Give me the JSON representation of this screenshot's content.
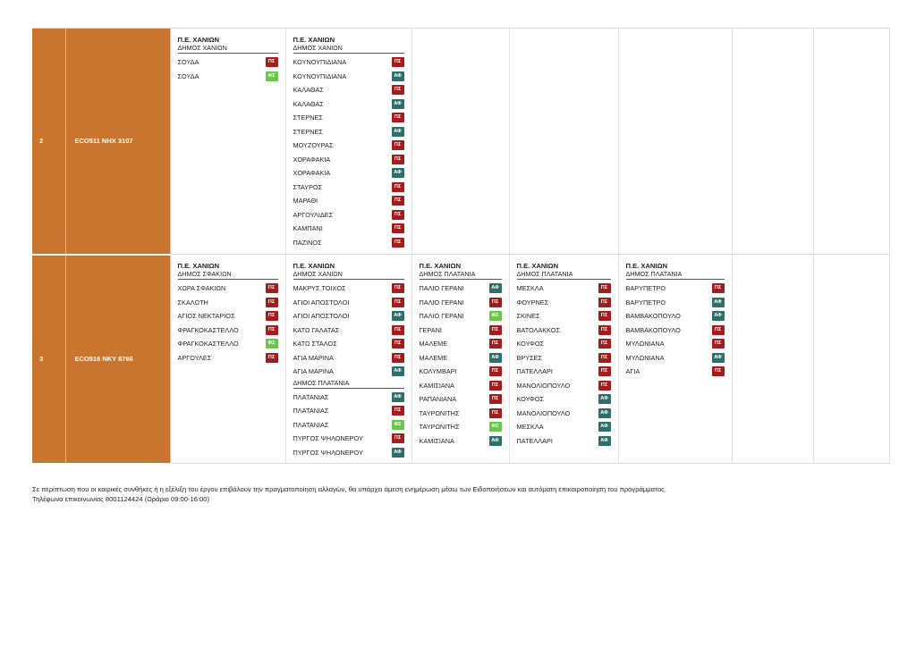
{
  "badge_colors": {
    "ΠΣ": "#a61c1c",
    "ΑΦ": "#2f6f6a",
    "ΦΣ": "#6cc64c"
  },
  "rows": [
    {
      "no": "2",
      "vehicle": "ECO511  NHX 3107",
      "columns": [
        {
          "pe": "Π.Ε. ΧΑΝΙΩΝ",
          "groups": [
            {
              "dimos": "ΔΗΜΟΣ ΧΑΝΙΩΝ",
              "stops": [
                {
                  "name": "ΣΟΥΔΑ",
                  "badge": "ΠΣ"
                },
                {
                  "name": "ΣΟΥΔΑ",
                  "badge": "ΦΣ"
                }
              ]
            }
          ]
        },
        {
          "pe": "Π.Ε. ΧΑΝΙΩΝ",
          "groups": [
            {
              "dimos": "ΔΗΜΟΣ ΧΑΝΙΩΝ",
              "stops": [
                {
                  "name": "ΚΟΥΝΟΥΠΙΔΙΑΝΑ",
                  "badge": "ΠΣ"
                },
                {
                  "name": "ΚΟΥΝΟΥΠΙΔΙΑΝΑ",
                  "badge": "ΑΦ"
                },
                {
                  "name": "ΚΑΛΑΘΑΣ",
                  "badge": "ΠΣ"
                },
                {
                  "name": "ΚΑΛΑΘΑΣ",
                  "badge": "ΑΦ"
                },
                {
                  "name": "ΣΤΕΡΝΕΣ",
                  "badge": "ΠΣ"
                },
                {
                  "name": "ΣΤΕΡΝΕΣ",
                  "badge": "ΑΦ"
                },
                {
                  "name": "ΜΟΥΖΟΥΡΑΣ",
                  "badge": "ΠΣ"
                },
                {
                  "name": "ΧΟΡΑΦΑΚΙΑ",
                  "badge": "ΠΣ"
                },
                {
                  "name": "ΧΟΡΑΦΑΚΙΑ",
                  "badge": "ΑΦ"
                },
                {
                  "name": "ΣΤΑΥΡΟΣ",
                  "badge": "ΠΣ"
                },
                {
                  "name": "ΜΑΡΑΘΙ",
                  "badge": "ΠΣ"
                },
                {
                  "name": "ΑΡΓΟΥΛΙΔΕΣ",
                  "badge": "ΠΣ"
                },
                {
                  "name": "ΚΑΜΠΑΝΙ",
                  "badge": "ΠΣ"
                },
                {
                  "name": "ΠΑΖΙΝΟΣ",
                  "badge": "ΠΣ"
                }
              ]
            }
          ]
        },
        null,
        null,
        null,
        null,
        null
      ]
    },
    {
      "no": "3",
      "vehicle": "ECO516  NKY 8766",
      "columns": [
        {
          "pe": "Π.Ε. ΧΑΝΙΩΝ",
          "groups": [
            {
              "dimos": "ΔΗΜΟΣ ΣΦΑΚΙΩΝ",
              "stops": [
                {
                  "name": "ΧΩΡΑ ΣΦΑΚΙΩΝ",
                  "badge": "ΠΣ"
                },
                {
                  "name": "ΣΚΑΛΩΤΗ",
                  "badge": "ΠΣ"
                },
                {
                  "name": "ΑΓΙΟΣ ΝΕΚΤΑΡΙΟΣ",
                  "badge": "ΠΣ"
                },
                {
                  "name": "ΦΡΑΓΚΟΚΑΣΤΕΛΛΟ",
                  "badge": "ΠΣ"
                },
                {
                  "name": "ΦΡΑΓΚΟΚΑΣΤΕΛΛΟ",
                  "badge": "ΦΣ"
                },
                {
                  "name": "ΑΡΓΟΥΛΕΣ",
                  "badge": "ΠΣ"
                }
              ]
            }
          ]
        },
        {
          "pe": "Π.Ε. ΧΑΝΙΩΝ",
          "groups": [
            {
              "dimos": "ΔΗΜΟΣ ΧΑΝΙΩΝ",
              "stops": [
                {
                  "name": "ΜΑΚΡΥΣ ΤΟΙΧΟΣ",
                  "badge": "ΠΣ"
                },
                {
                  "name": "ΑΓΙΟΙ ΑΠΟΣΤΟΛΟΙ",
                  "badge": "ΠΣ"
                },
                {
                  "name": "ΑΓΙΟΙ ΑΠΟΣΤΟΛΟΙ",
                  "badge": "ΑΦ"
                },
                {
                  "name": "ΚΑΤΩ ΓΑΛΑΤΑΣ",
                  "badge": "ΠΣ"
                },
                {
                  "name": "ΚΑΤΩ ΣΤΑΛΟΣ",
                  "badge": "ΠΣ"
                },
                {
                  "name": "ΑΓΙΑ ΜΑΡΙΝΑ",
                  "badge": "ΠΣ"
                },
                {
                  "name": "ΑΓΙΑ ΜΑΡΙΝΑ",
                  "badge": "ΑΦ"
                }
              ]
            },
            {
              "dimos": "ΔΗΜΟΣ ΠΛΑΤΑΝΙΑ",
              "stops": [
                {
                  "name": "ΠΛΑΤΑΝΙΑΣ",
                  "badge": "ΑΦ"
                },
                {
                  "name": "ΠΛΑΤΑΝΙΑΣ",
                  "badge": "ΠΣ"
                },
                {
                  "name": "ΠΛΑΤΑΝΙΑΣ",
                  "badge": "ΦΣ"
                },
                {
                  "name": "ΠΥΡΓΟΣ ΨΗΛΟΝΕΡΟΥ",
                  "badge": "ΠΣ"
                },
                {
                  "name": "ΠΥΡΓΟΣ ΨΗΛΟΝΕΡΟΥ",
                  "badge": "ΑΦ"
                }
              ]
            }
          ]
        },
        {
          "pe": "Π.Ε. ΧΑΝΙΩΝ",
          "groups": [
            {
              "dimos": "ΔΗΜΟΣ ΠΛΑΤΑΝΙΑ",
              "stops": [
                {
                  "name": "ΠΑΛΙΟ ΓΕΡΑΝΙ",
                  "badge": "ΑΦ"
                },
                {
                  "name": "ΠΑΛΙΟ ΓΕΡΑΝΙ",
                  "badge": "ΠΣ"
                },
                {
                  "name": "ΠΑΛΙΟ ΓΕΡΑΝΙ",
                  "badge": "ΦΣ"
                },
                {
                  "name": "ΓΕΡΑΝΙ",
                  "badge": "ΠΣ"
                },
                {
                  "name": "ΜΑΛΕΜΕ",
                  "badge": "ΠΣ"
                },
                {
                  "name": "ΜΑΛΕΜΕ",
                  "badge": "ΑΦ"
                },
                {
                  "name": "ΚΟΛΥΜΒΑΡΙ",
                  "badge": "ΠΣ"
                },
                {
                  "name": "ΚΑΜΙΣΙΑΝΑ",
                  "badge": "ΠΣ"
                },
                {
                  "name": "ΡΑΠΑΝΙΑΝΑ",
                  "badge": "ΠΣ"
                },
                {
                  "name": "ΤΑΥΡΩΝΙΤΗΣ",
                  "badge": "ΠΣ"
                },
                {
                  "name": "ΤΑΥΡΩΝΙΤΗΣ",
                  "badge": "ΦΣ"
                },
                {
                  "name": "ΚΑΜΙΣΙΑΝΑ",
                  "badge": "ΑΦ"
                }
              ]
            }
          ]
        },
        {
          "pe": "Π.Ε. ΧΑΝΙΩΝ",
          "groups": [
            {
              "dimos": "ΔΗΜΟΣ ΠΛΑΤΑΝΙΑ",
              "stops": [
                {
                  "name": "ΜΕΣΚΛΑ",
                  "badge": "ΠΣ"
                },
                {
                  "name": "ΦΟΥΡΝΕΣ",
                  "badge": "ΠΣ"
                },
                {
                  "name": "ΣΚΙΝΕΣ",
                  "badge": "ΠΣ"
                },
                {
                  "name": "ΒΑΤΟΛΑΚΚΟΣ",
                  "badge": "ΠΣ"
                },
                {
                  "name": "ΚΟΥΦΟΣ",
                  "badge": "ΠΣ"
                },
                {
                  "name": "ΒΡΥΣΕΣ",
                  "badge": "ΠΣ"
                },
                {
                  "name": "ΠΑΤΕΛΛΑΡΙ",
                  "badge": "ΠΣ"
                },
                {
                  "name": "ΜΑΝΟΛΙΟΠΟΥΛΟ",
                  "badge": "ΠΣ"
                },
                {
                  "name": "ΚΟΥΦΟΣ",
                  "badge": "ΑΦ"
                },
                {
                  "name": "ΜΑΝΟΛΙΟΠΟΥΛΟ",
                  "badge": "ΑΦ"
                },
                {
                  "name": "ΜΕΣΚΛΑ",
                  "badge": "ΑΦ"
                },
                {
                  "name": "ΠΑΤΕΛΛΑΡΙ",
                  "badge": "ΑΦ"
                }
              ]
            }
          ]
        },
        {
          "pe": "Π.Ε. ΧΑΝΙΩΝ",
          "groups": [
            {
              "dimos": "ΔΗΜΟΣ ΠΛΑΤΑΝΙΑ",
              "stops": [
                {
                  "name": "ΒΑΡΥΠΕΤΡΟ",
                  "badge": "ΠΣ"
                },
                {
                  "name": "ΒΑΡΥΠΕΤΡΟ",
                  "badge": "ΑΦ"
                },
                {
                  "name": "ΒΑΜΒΑΚΟΠΟΥΛΟ",
                  "badge": "ΑΦ"
                },
                {
                  "name": "ΒΑΜΒΑΚΟΠΟΥΛΟ",
                  "badge": "ΠΣ"
                },
                {
                  "name": "ΜΥΛΩΝΙΑΝΑ",
                  "badge": "ΠΣ"
                },
                {
                  "name": "ΜΥΛΩΝΙΑΝΑ",
                  "badge": "ΑΦ"
                },
                {
                  "name": "ΑΓΙΑ",
                  "badge": "ΠΣ"
                }
              ]
            }
          ]
        },
        null,
        null
      ]
    }
  ],
  "footer": {
    "line1": "Σε περίπτωση που οι καιρικές συνθήκες ή η εξέλιξη του έργου επιβάλουν την πραγματοποίηση αλλαγών, θα υπάρχει άμεση ενημέρωση μέσω των Ειδοποιήσεων και αυτόματη επικαιροποίηση του προγράμματος.",
    "line2": "Τηλέφωνα επικοινωνίας 8001124424 (Ωράριο 09:00-16:00)"
  }
}
